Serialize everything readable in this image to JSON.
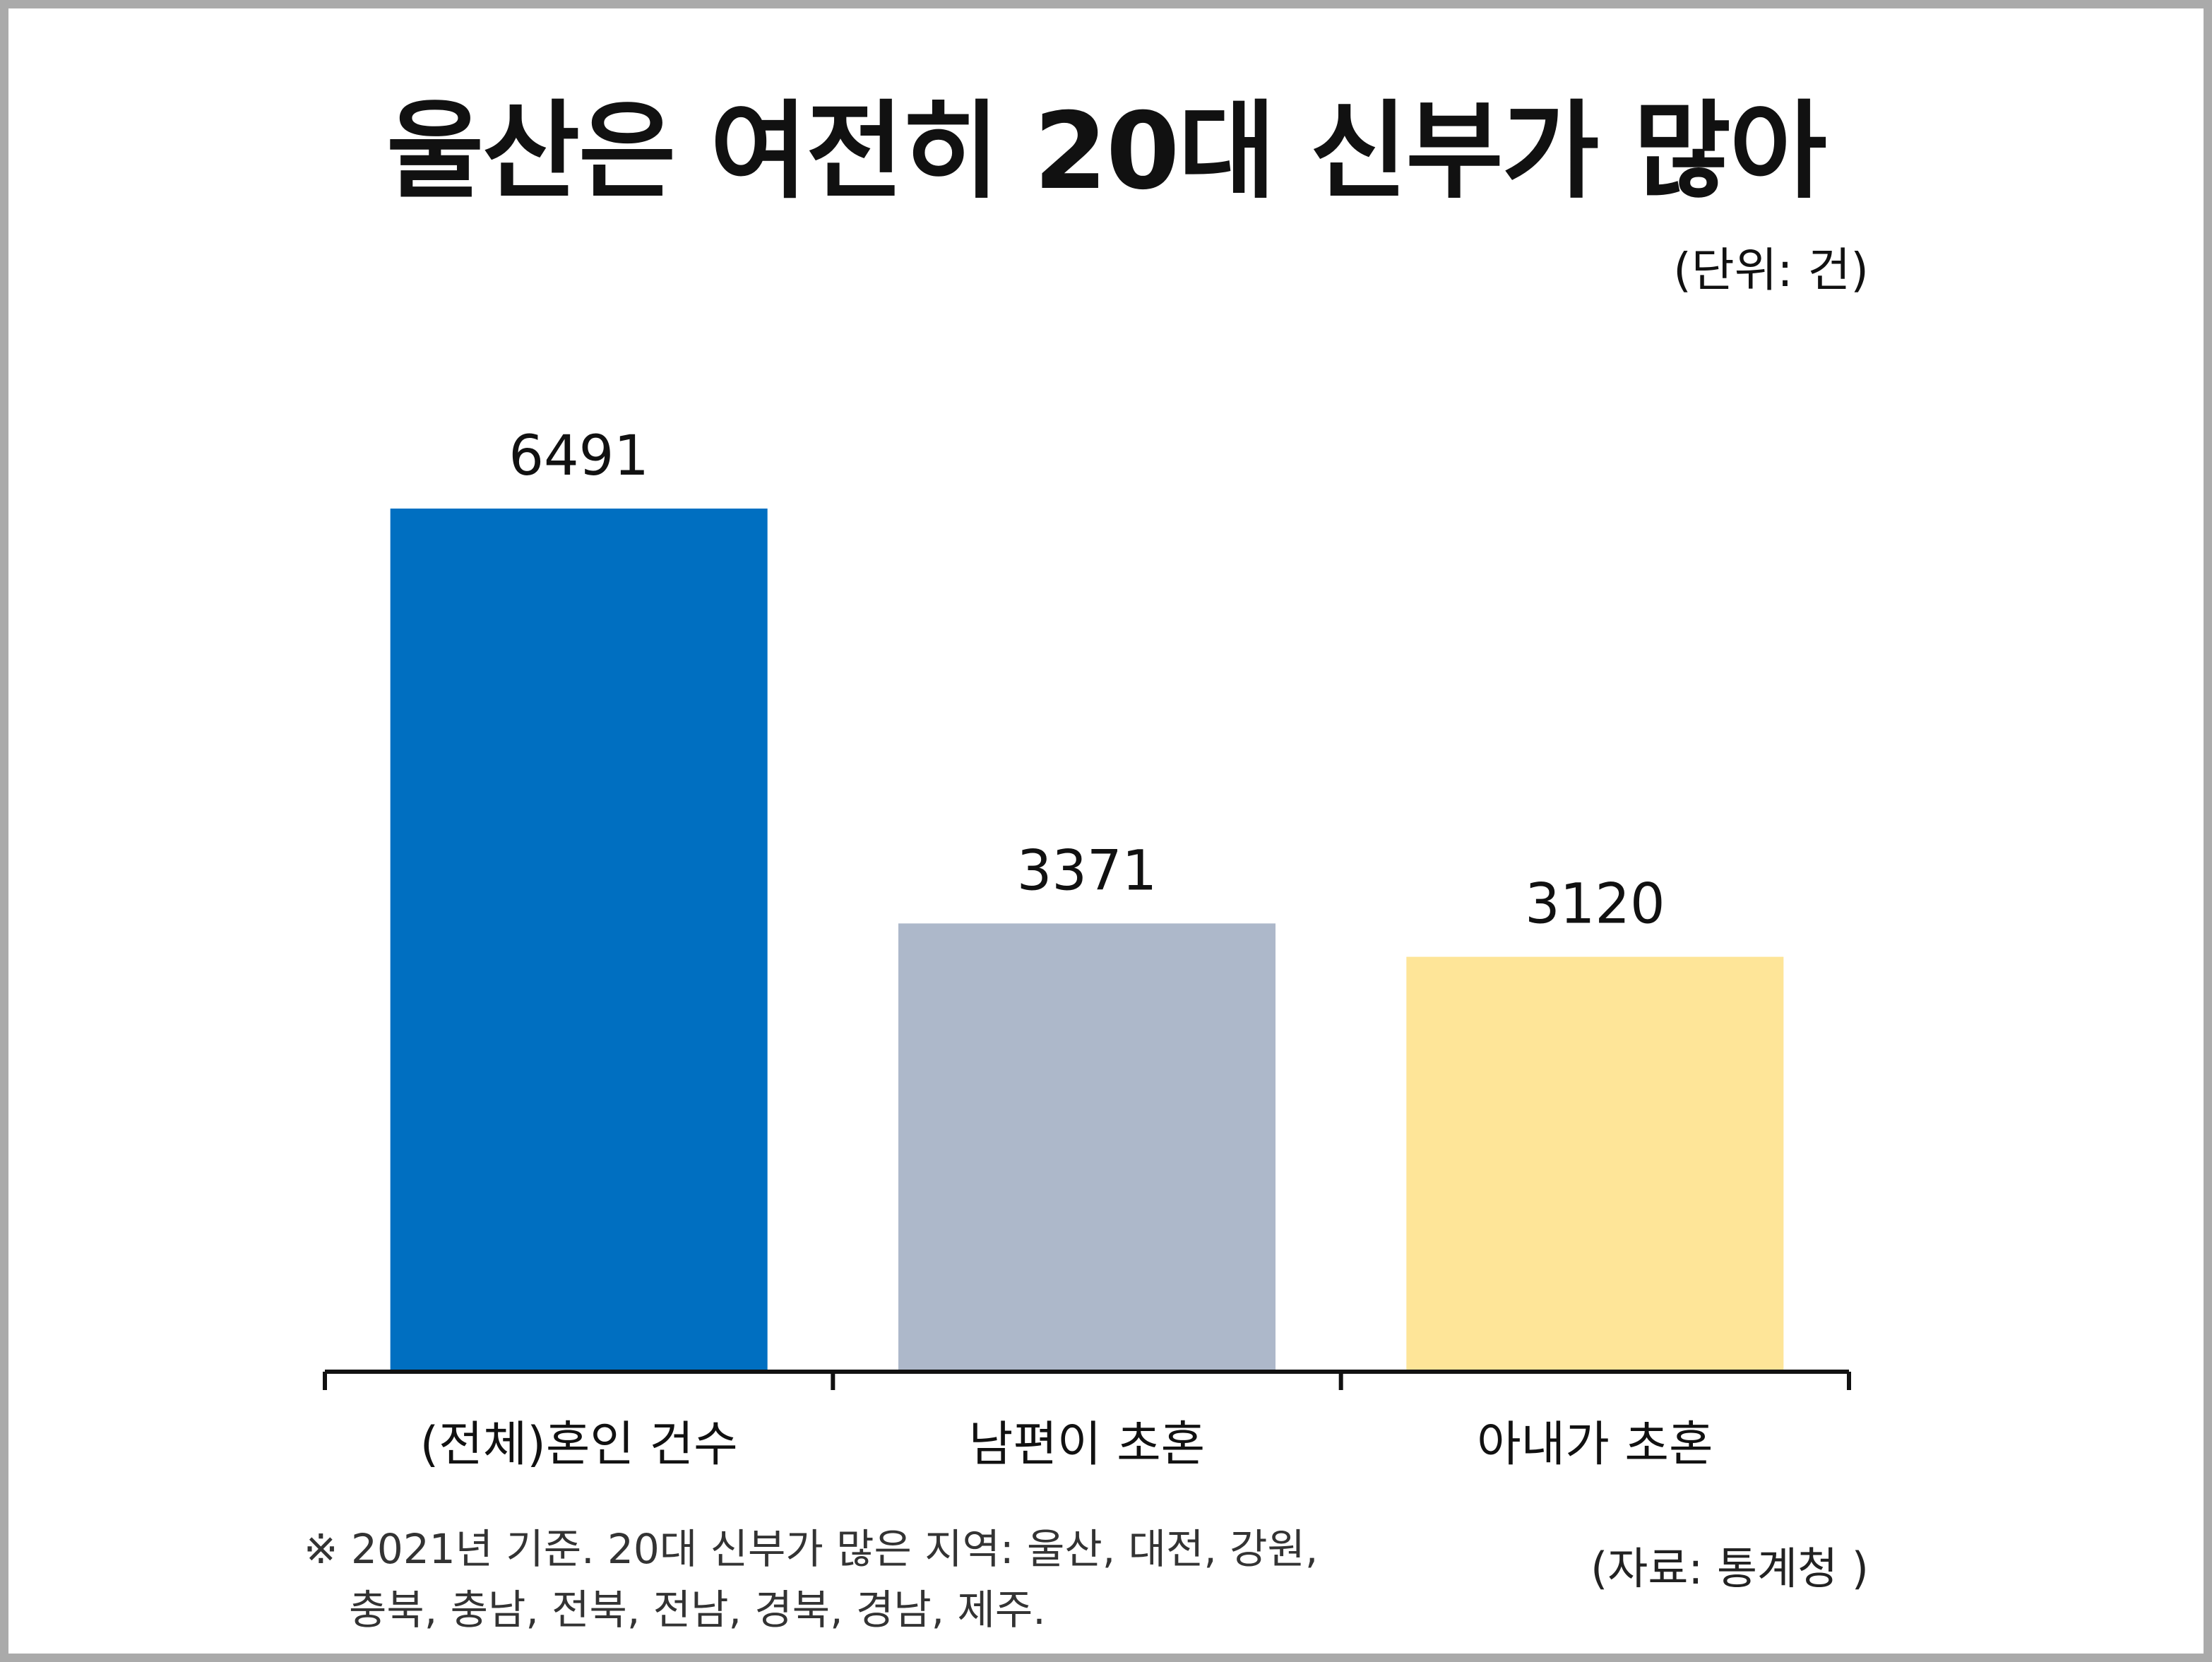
{
  "title": "울산은 여전히 20대 신부가 많아",
  "unit_label": "(단위: 건)",
  "note": {
    "line1": "※ 2021년 기준. 20대 신부가 많은 지역: 울산, 대전, 강원,",
    "line2": "충북, 충남, 전북, 전남, 경북, 경남, 제주."
  },
  "source": "(자료: 통계청 )",
  "chart_data": {
    "type": "bar",
    "categories": [
      "(전체)혼인 건수",
      "남편이 초혼",
      "아내가 초혼"
    ],
    "values": [
      6491,
      3371,
      3120
    ],
    "data_labels": [
      "6491",
      "3371",
      "3120"
    ],
    "colors": [
      "#006fc1",
      "#adb8ca",
      "#fee598"
    ],
    "ylim": [
      0,
      6491
    ],
    "grid": false,
    "legend": "none",
    "xlabel": "",
    "ylabel": ""
  }
}
